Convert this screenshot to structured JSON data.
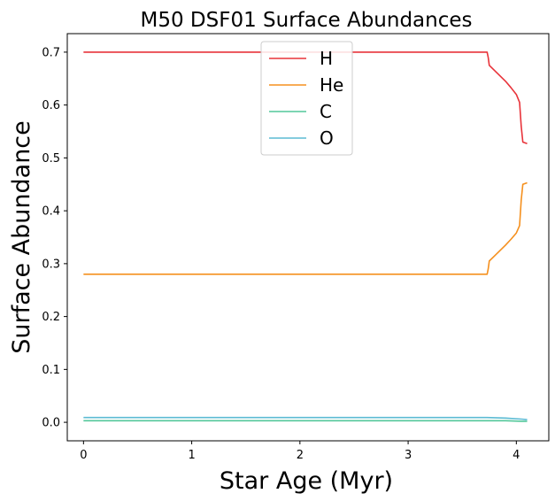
{
  "chart_data": {
    "type": "line",
    "title": "M50 DSF01 Surface Abundances",
    "xlabel": "Star Age (Myr)",
    "ylabel": "Surface Abundance",
    "xlim": [
      -0.15,
      4.3
    ],
    "ylim": [
      -0.035,
      0.735
    ],
    "xticks": [
      0,
      1,
      2,
      3,
      4
    ],
    "xtick_labels": [
      "0",
      "1",
      "2",
      "3",
      "4"
    ],
    "yticks": [
      0.0,
      0.1,
      0.2,
      0.3,
      0.4,
      0.5,
      0.6,
      0.7
    ],
    "ytick_labels": [
      "0.0",
      "0.1",
      "0.2",
      "0.3",
      "0.4",
      "0.5",
      "0.6",
      "0.7"
    ],
    "grid": false,
    "legend_position": "top-center",
    "series": [
      {
        "name": "H",
        "color": "#e8333a",
        "x": [
          0,
          3.0,
          3.73,
          3.74,
          3.75,
          3.8,
          3.85,
          3.9,
          3.95,
          4.0,
          4.03,
          4.045,
          4.06,
          4.1
        ],
        "y": [
          0.7,
          0.7,
          0.7,
          0.69,
          0.675,
          0.665,
          0.655,
          0.645,
          0.633,
          0.62,
          0.605,
          0.56,
          0.53,
          0.527
        ]
      },
      {
        "name": "He",
        "color": "#f5901e",
        "x": [
          0,
          3.0,
          3.73,
          3.74,
          3.75,
          3.8,
          3.85,
          3.9,
          3.95,
          4.0,
          4.03,
          4.045,
          4.06,
          4.1
        ],
        "y": [
          0.28,
          0.28,
          0.28,
          0.29,
          0.305,
          0.315,
          0.325,
          0.335,
          0.346,
          0.358,
          0.372,
          0.42,
          0.45,
          0.453
        ]
      },
      {
        "name": "C",
        "color": "#52c79a",
        "x": [
          0,
          3.73,
          3.9,
          4.05,
          4.1
        ],
        "y": [
          0.003,
          0.003,
          0.003,
          0.002,
          0.002
        ]
      },
      {
        "name": "O",
        "color": "#5bbbd3",
        "x": [
          0,
          3.73,
          3.9,
          4.05,
          4.1
        ],
        "y": [
          0.009,
          0.009,
          0.008,
          0.006,
          0.005
        ]
      }
    ]
  }
}
